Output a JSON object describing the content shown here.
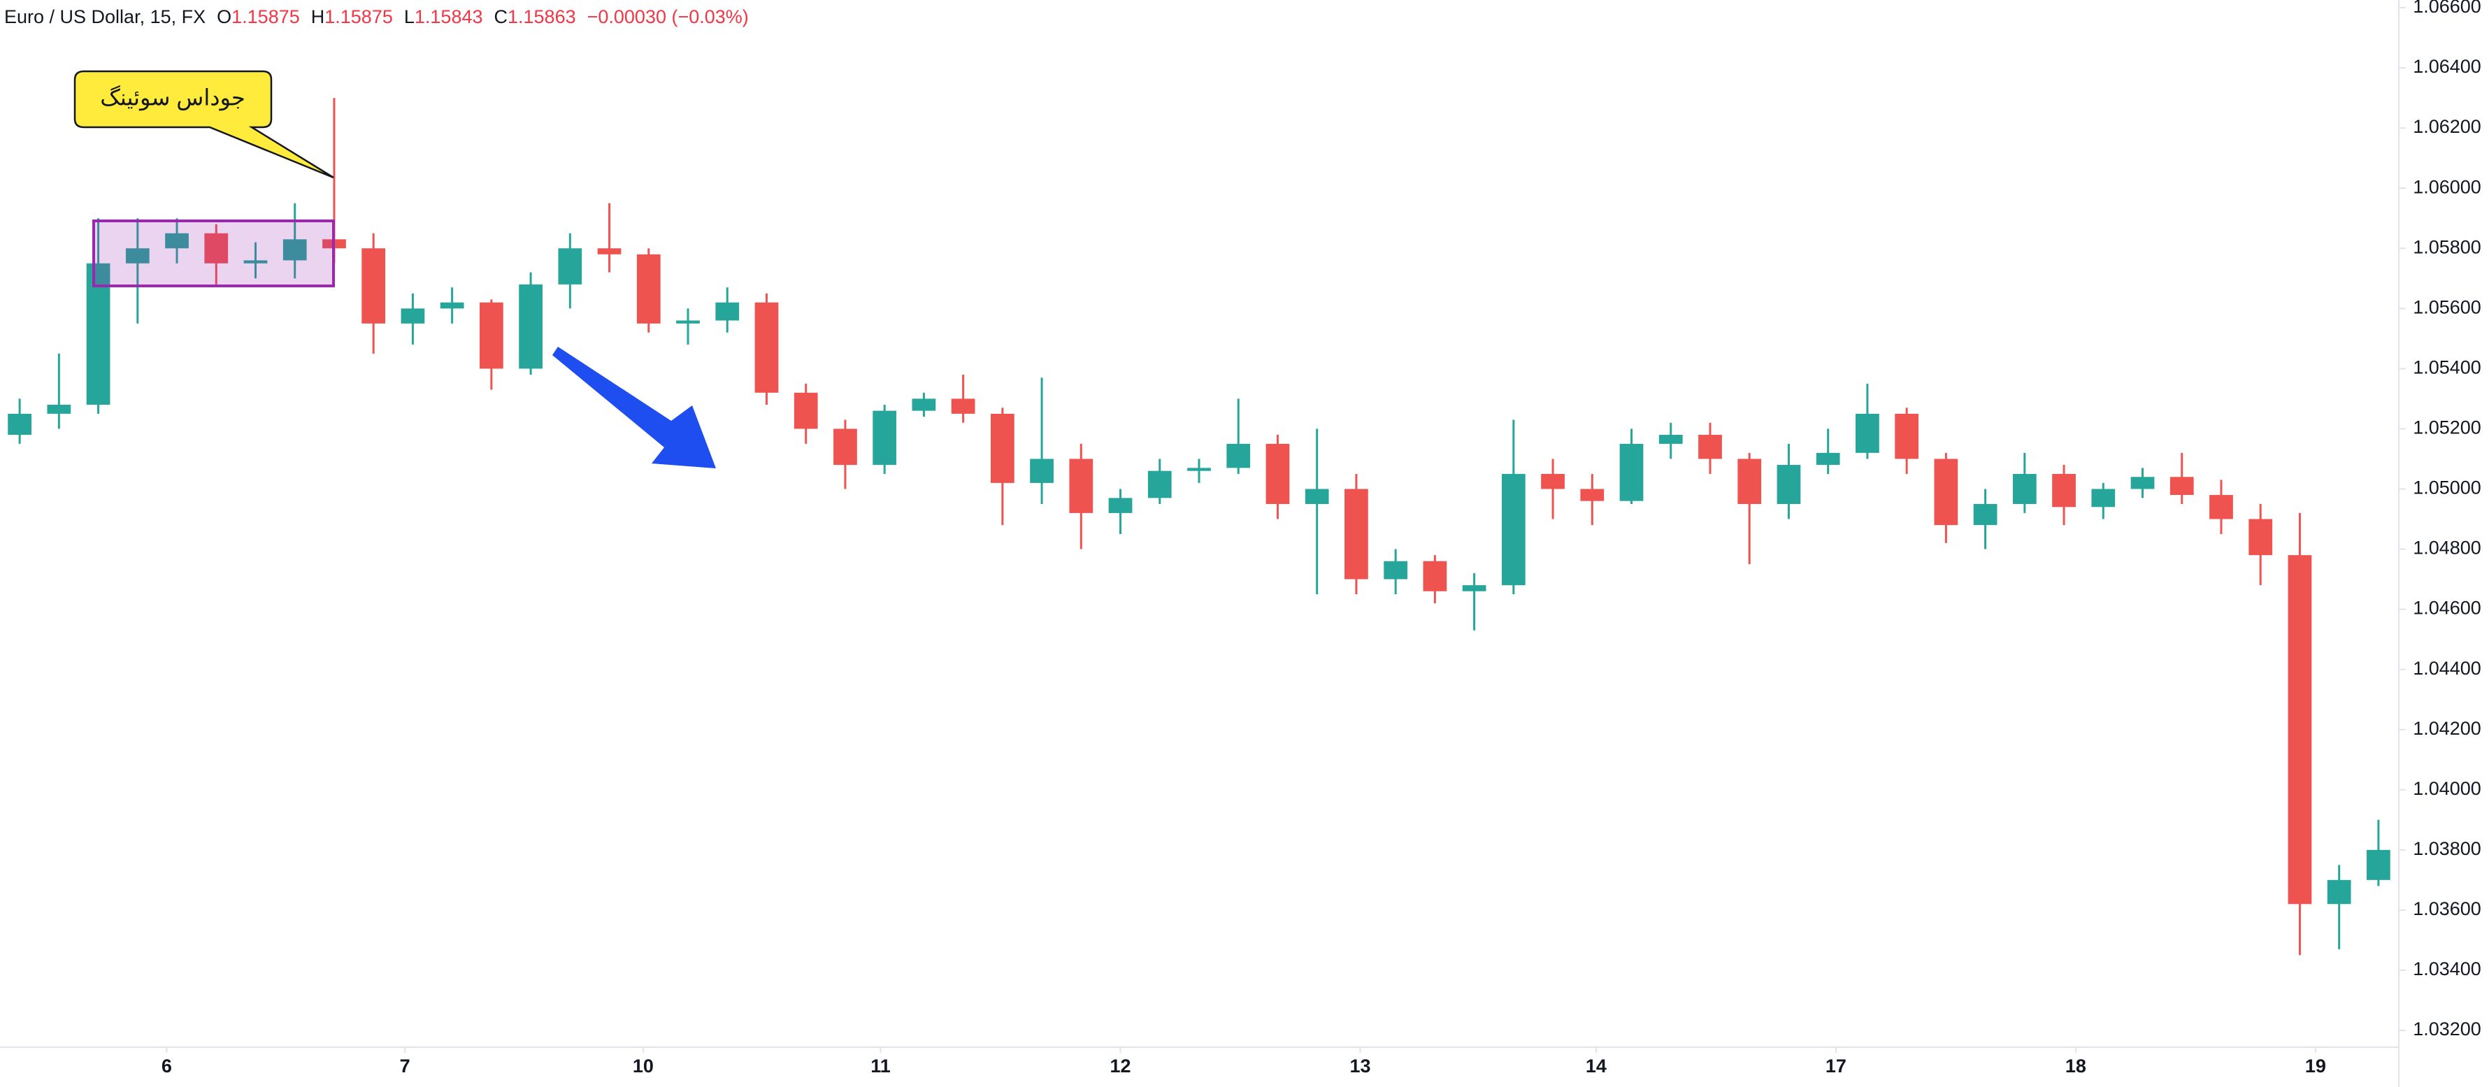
{
  "chart_data": {
    "type": "candlestick",
    "header": {
      "symbol": "Euro / US Dollar, 15, FX",
      "open_label": "O",
      "open": "1.15875",
      "high_label": "H",
      "high": "1.15875",
      "low_label": "L",
      "low": "1.15843",
      "close_label": "C",
      "close": "1.15863",
      "change": "−0.00030 (−0.03%)"
    },
    "annotation": "جوداس سوئینگ",
    "up_color": "#26a69a",
    "down_color": "#ef5350",
    "open": [
      1.0518,
      1.0525,
      1.0528,
      1.0575,
      1.058,
      1.0585,
      1.0575,
      1.0576,
      1.0583,
      1.058,
      1.0555,
      1.056,
      1.0562,
      1.054,
      1.0568,
      1.058,
      1.0578,
      1.0555,
      1.0556,
      1.0562,
      1.0532,
      1.052,
      1.0508,
      1.0526,
      1.053,
      1.0525,
      1.0502,
      1.051,
      1.0492,
      1.0497,
      1.0506,
      1.0507,
      1.0515,
      1.0495,
      1.05,
      1.047,
      1.0476,
      1.0466,
      1.0468,
      1.0505,
      1.05,
      1.0496,
      1.0515,
      1.0518,
      1.051,
      1.0495,
      1.0508,
      1.0512,
      1.0525,
      1.051,
      1.0488,
      1.0495,
      1.0505,
      1.0494,
      1.05,
      1.0504,
      1.0498,
      1.049,
      1.0478,
      1.0362,
      1.037
    ],
    "high": [
      1.053,
      1.0545,
      1.059,
      1.059,
      1.059,
      1.0588,
      1.0582,
      1.0595,
      1.063,
      1.0585,
      1.0565,
      1.0567,
      1.0563,
      1.0572,
      1.0585,
      1.0595,
      1.058,
      1.056,
      1.0567,
      1.0565,
      1.0535,
      1.0523,
      1.0528,
      1.0532,
      1.0538,
      1.0527,
      1.0537,
      1.0515,
      1.05,
      1.051,
      1.051,
      1.053,
      1.0518,
      1.052,
      1.0505,
      1.048,
      1.0478,
      1.0472,
      1.0523,
      1.051,
      1.0505,
      1.052,
      1.0522,
      1.0522,
      1.0512,
      1.0515,
      1.052,
      1.0535,
      1.0527,
      1.0512,
      1.05,
      1.0512,
      1.0508,
      1.0502,
      1.0507,
      1.0512,
      1.0503,
      1.0495,
      1.0492,
      1.0375,
      1.039
    ],
    "low": [
      1.0515,
      1.052,
      1.0525,
      1.0555,
      1.0575,
      1.0568,
      1.057,
      1.057,
      1.0575,
      1.0545,
      1.0548,
      1.0555,
      1.0533,
      1.0538,
      1.056,
      1.0572,
      1.0552,
      1.0548,
      1.0552,
      1.0528,
      1.0515,
      1.05,
      1.0505,
      1.0524,
      1.0522,
      1.0488,
      1.0495,
      1.048,
      1.0485,
      1.0495,
      1.0502,
      1.0505,
      1.049,
      1.0465,
      1.0465,
      1.0465,
      1.0462,
      1.0453,
      1.0465,
      1.049,
      1.0488,
      1.0495,
      1.051,
      1.0505,
      1.0475,
      1.049,
      1.0505,
      1.051,
      1.0505,
      1.0482,
      1.048,
      1.0492,
      1.0488,
      1.049,
      1.0497,
      1.0495,
      1.0485,
      1.0468,
      1.0345,
      1.0347,
      1.0368
    ],
    "close": [
      1.0525,
      1.0528,
      1.0575,
      1.058,
      1.0585,
      1.0575,
      1.0576,
      1.0583,
      1.058,
      1.0555,
      1.056,
      1.0562,
      1.054,
      1.0568,
      1.058,
      1.0578,
      1.0555,
      1.0556,
      1.0562,
      1.0532,
      1.052,
      1.0508,
      1.0526,
      1.053,
      1.0525,
      1.0502,
      1.051,
      1.0492,
      1.0497,
      1.0506,
      1.0507,
      1.0515,
      1.0495,
      1.05,
      1.047,
      1.0476,
      1.0466,
      1.0468,
      1.0505,
      1.05,
      1.0496,
      1.0515,
      1.0518,
      1.051,
      1.0495,
      1.0508,
      1.0512,
      1.0525,
      1.051,
      1.0488,
      1.0495,
      1.0505,
      1.0494,
      1.05,
      1.0504,
      1.0498,
      1.049,
      1.0478,
      1.0362,
      1.037,
      1.038
    ],
    "xlim": [
      -0.5,
      60.5
    ],
    "xticks": [
      {
        "value": 3.74,
        "label": "6"
      },
      {
        "value": 9.8,
        "label": "7"
      },
      {
        "value": 15.86,
        "label": "10"
      },
      {
        "value": 21.9,
        "label": "11"
      },
      {
        "value": 28.0,
        "label": "12"
      },
      {
        "value": 34.1,
        "label": "13"
      },
      {
        "value": 40.1,
        "label": "14"
      },
      {
        "value": 46.2,
        "label": "17"
      },
      {
        "value": 52.3,
        "label": "18"
      },
      {
        "value": 58.4,
        "label": "19"
      }
    ],
    "ylim": [
      1.032,
      1.066
    ],
    "yticks": [
      {
        "value": 1.032,
        "label": "1.03200"
      },
      {
        "value": 1.034,
        "label": "1.03400"
      },
      {
        "value": 1.036,
        "label": "1.03600"
      },
      {
        "value": 1.038,
        "label": "1.03800"
      },
      {
        "value": 1.04,
        "label": "1.04000"
      },
      {
        "value": 1.042,
        "label": "1.04200"
      },
      {
        "value": 1.044,
        "label": "1.04400"
      },
      {
        "value": 1.046,
        "label": "1.04600"
      },
      {
        "value": 1.048,
        "label": "1.04800"
      },
      {
        "value": 1.05,
        "label": "1.05000"
      },
      {
        "value": 1.052,
        "label": "1.05200"
      },
      {
        "value": 1.054,
        "label": "1.05400"
      },
      {
        "value": 1.056,
        "label": "1.05600"
      },
      {
        "value": 1.058,
        "label": "1.05800"
      },
      {
        "value": 1.06,
        "label": "1.06000"
      },
      {
        "value": 1.062,
        "label": "1.06200"
      },
      {
        "value": 1.064,
        "label": "1.06400"
      },
      {
        "value": 1.066,
        "label": "1.06600"
      }
    ]
  }
}
